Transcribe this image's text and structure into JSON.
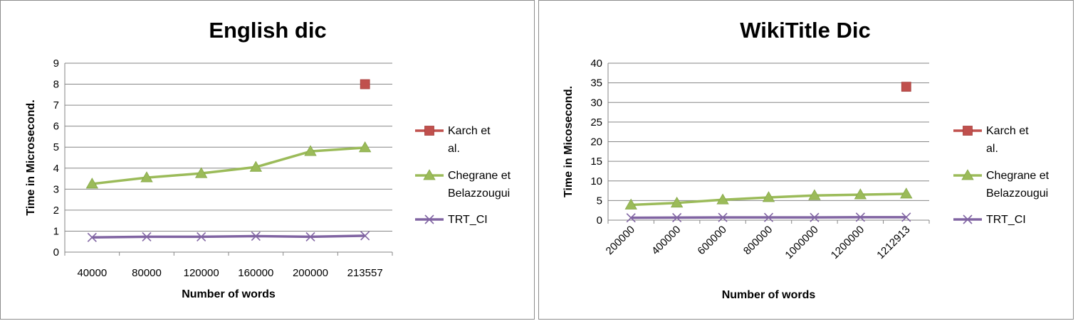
{
  "chart_data": [
    {
      "type": "line",
      "title": "English dic",
      "xlabel": "Number of words",
      "ylabel": "Time in Microsecond.",
      "categories": [
        "40000",
        "80000",
        "120000",
        "160000",
        "200000",
        "213557"
      ],
      "ylim": [
        0,
        9
      ],
      "yticks": [
        0,
        1,
        2,
        3,
        4,
        5,
        6,
        7,
        8,
        9
      ],
      "grid": true,
      "legend": "right",
      "series": [
        {
          "name": "Karch et al.",
          "color": "#c0504d",
          "marker": "square",
          "values": [
            null,
            null,
            null,
            null,
            null,
            8.0
          ]
        },
        {
          "name": "Chegrane et Belazzougui",
          "color": "#9bbb59",
          "marker": "triangle",
          "values": [
            3.25,
            3.55,
            3.75,
            4.05,
            4.8,
            4.98
          ]
        },
        {
          "name": "TRT_CI",
          "color": "#8064a2",
          "marker": "x",
          "values": [
            0.7,
            0.73,
            0.73,
            0.76,
            0.73,
            0.78
          ]
        }
      ]
    },
    {
      "type": "line",
      "title": "WikiTitle Dic",
      "xlabel": "Number of words",
      "ylabel": "Time in Micosecond.",
      "categories": [
        "200000",
        "400000",
        "600000",
        "800000",
        "1000000",
        "1200000",
        "1212913"
      ],
      "ylim": [
        0,
        40
      ],
      "yticks": [
        0,
        5,
        10,
        15,
        20,
        25,
        30,
        35,
        40
      ],
      "grid": true,
      "legend": "right",
      "series": [
        {
          "name": "Karch et al.",
          "color": "#c0504d",
          "marker": "square",
          "values": [
            null,
            null,
            null,
            null,
            null,
            null,
            34.0
          ]
        },
        {
          "name": "Chegrane et Belazzougui",
          "color": "#9bbb59",
          "marker": "triangle",
          "values": [
            3.9,
            4.4,
            5.2,
            5.8,
            6.3,
            6.5,
            6.7
          ]
        },
        {
          "name": "TRT_CI",
          "color": "#8064a2",
          "marker": "x",
          "values": [
            0.6,
            0.65,
            0.7,
            0.7,
            0.7,
            0.75,
            0.75
          ]
        }
      ]
    }
  ]
}
